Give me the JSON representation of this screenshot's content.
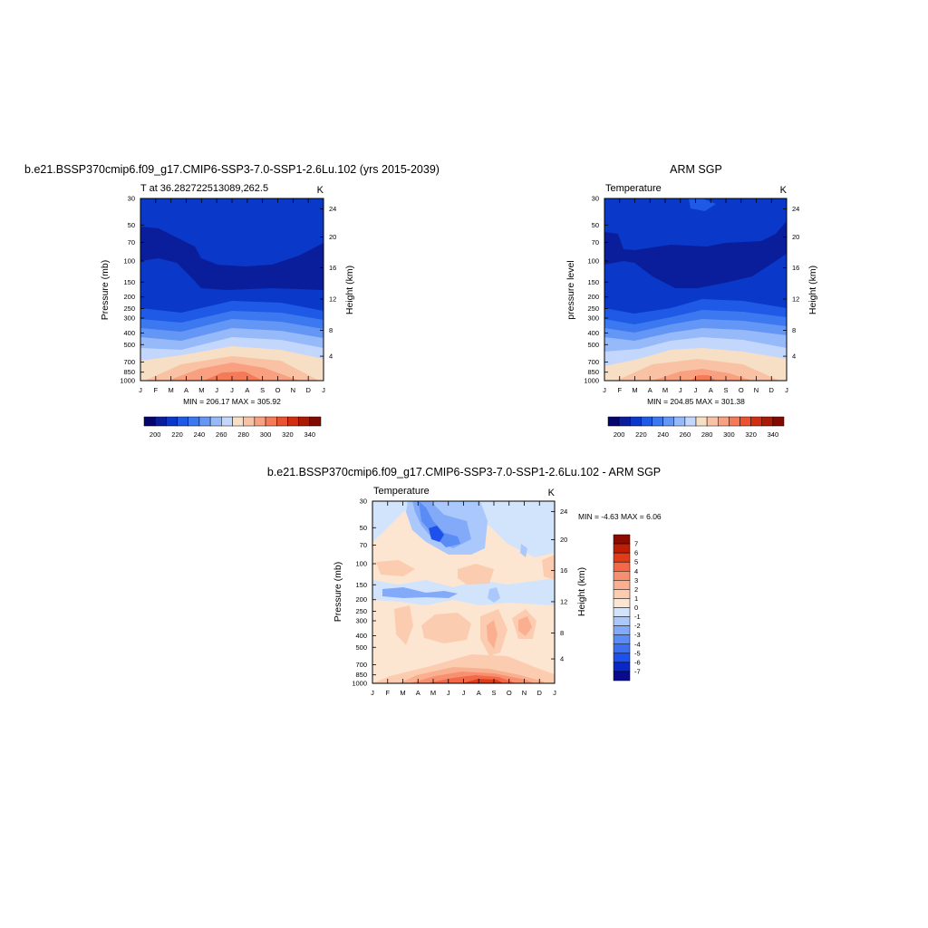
{
  "colors": {
    "temperature_scale": [
      "#05056e",
      "#0a1e9c",
      "#0a38c8",
      "#1e5ae6",
      "#3c78f0",
      "#6496f5",
      "#96b9fa",
      "#c3d7fc",
      "#f7dfc5",
      "#f9c2a4",
      "#f9a080",
      "#f47a58",
      "#eb5230",
      "#d22d10",
      "#aa1a05",
      "#820a00"
    ],
    "diff_scale": [
      "#0a0a8c",
      "#0a28c8",
      "#1e50eb",
      "#3c6ef0",
      "#5a8cf5",
      "#82aaf8",
      "#aac8fb",
      "#d2e4fc",
      "#fce6d2",
      "#fcccb0",
      "#fab090",
      "#f79070",
      "#f26848",
      "#e03c18",
      "#be1e05",
      "#8c0a00"
    ]
  },
  "chart_data": [
    {
      "type": "heatmap",
      "title": "b.e21.BSSP370cmip6.f09_g17.CMIP6-SSP3-7.0-SSP1-2.6Lu.102 (yrs 2015-2039)",
      "left_label": "T at 36.282722513089,262.5",
      "right_label": "K",
      "ylabel": "Pressure (mb)",
      "ylabel_right": "Height (km)",
      "xticks": [
        "J",
        "F",
        "M",
        "A",
        "M",
        "J",
        "J",
        "A",
        "S",
        "O",
        "N",
        "D",
        "J"
      ],
      "yticks": [
        "30",
        "50",
        "70",
        "100",
        "150",
        "200",
        "250",
        "300",
        "400",
        "500",
        "700",
        "850",
        "1000"
      ],
      "yticks_right": [
        "24",
        "20",
        "16",
        "12",
        "8",
        "4"
      ],
      "stats": "MIN = 206.17 MAX = 305.92",
      "colorbar": {
        "orientation": "horizontal",
        "levels": [
          195,
          200,
          205,
          210,
          215,
          220,
          225,
          230,
          235,
          240,
          245,
          250,
          255,
          260,
          265,
          270
        ],
        "labels": [
          "200",
          "220",
          "240",
          "260",
          "280",
          "300",
          "320",
          "340"
        ]
      },
      "field": {
        "pressure_levels_mb": [
          30,
          50,
          70,
          100,
          150,
          200,
          250,
          300,
          400,
          500,
          700,
          850,
          1000
        ],
        "months": [
          "Jan",
          "Feb",
          "Mar",
          "Apr",
          "May",
          "Jun",
          "Jul",
          "Aug",
          "Sep",
          "Oct",
          "Nov",
          "Dec",
          "Jan"
        ],
        "bands_at_jan": [
          {
            "p_top": 30,
            "value": 225
          },
          {
            "p_top": 45,
            "value": 212
          },
          {
            "p_top": 150,
            "value": 220
          },
          {
            "p_top": 240,
            "value": 230
          },
          {
            "p_top": 300,
            "value": 240
          },
          {
            "p_top": 380,
            "value": 250
          },
          {
            "p_top": 480,
            "value": 260
          },
          {
            "p_top": 620,
            "value": 270
          },
          {
            "p_top": 800,
            "value": 280
          }
        ],
        "summer_peak_month": "Jul",
        "max_value": 305.92,
        "min_value": 206.17
      }
    },
    {
      "type": "heatmap",
      "title": "ARM SGP",
      "left_label": "Temperature",
      "right_label": "K",
      "ylabel": "pressure level",
      "ylabel_right": "Height (km)",
      "xticks": [
        "J",
        "F",
        "M",
        "A",
        "M",
        "J",
        "J",
        "A",
        "S",
        "O",
        "N",
        "D",
        "J"
      ],
      "yticks": [
        "30",
        "50",
        "70",
        "100",
        "150",
        "200",
        "250",
        "300",
        "400",
        "500",
        "700",
        "850",
        "1000"
      ],
      "yticks_right": [
        "24",
        "20",
        "16",
        "12",
        "8",
        "4"
      ],
      "stats": "MIN = 204.85 MAX = 301.38",
      "colorbar": {
        "orientation": "horizontal",
        "levels": [
          195,
          200,
          205,
          210,
          215,
          220,
          225,
          230,
          235,
          240,
          245,
          250,
          255,
          260,
          265,
          270
        ],
        "labels": [
          "200",
          "220",
          "240",
          "260",
          "280",
          "300",
          "320",
          "340"
        ]
      },
      "field": {
        "max_value": 301.38,
        "min_value": 204.85
      }
    },
    {
      "type": "heatmap",
      "title": "b.e21.BSSP370cmip6.f09_g17.CMIP6-SSP3-7.0-SSP1-2.6Lu.102 - ARM SGP",
      "left_label": "Temperature",
      "right_label": "K",
      "ylabel": "Pressure (mb)",
      "ylabel_right": "Height (km)",
      "xticks": [
        "J",
        "F",
        "M",
        "A",
        "M",
        "J",
        "J",
        "A",
        "S",
        "O",
        "N",
        "D",
        "J"
      ],
      "yticks": [
        "30",
        "50",
        "70",
        "100",
        "150",
        "200",
        "250",
        "300",
        "400",
        "500",
        "700",
        "850",
        "1000"
      ],
      "yticks_right": [
        "24",
        "20",
        "16",
        "12",
        "8",
        "4"
      ],
      "stats": "MIN = -4.63 MAX = 6.06",
      "colorbar": {
        "orientation": "vertical",
        "levels": [
          -7,
          -6,
          -5,
          -4,
          -3,
          -2,
          -1,
          0,
          1,
          2,
          3,
          4,
          5,
          6,
          7
        ],
        "labels": [
          "7",
          "6",
          "5",
          "4",
          "3",
          "2",
          "1",
          "0",
          "-1",
          "-2",
          "-3",
          "-4",
          "-5",
          "-6",
          "-7"
        ]
      },
      "field": {
        "max_value": 6.06,
        "min_value": -4.63
      }
    }
  ]
}
